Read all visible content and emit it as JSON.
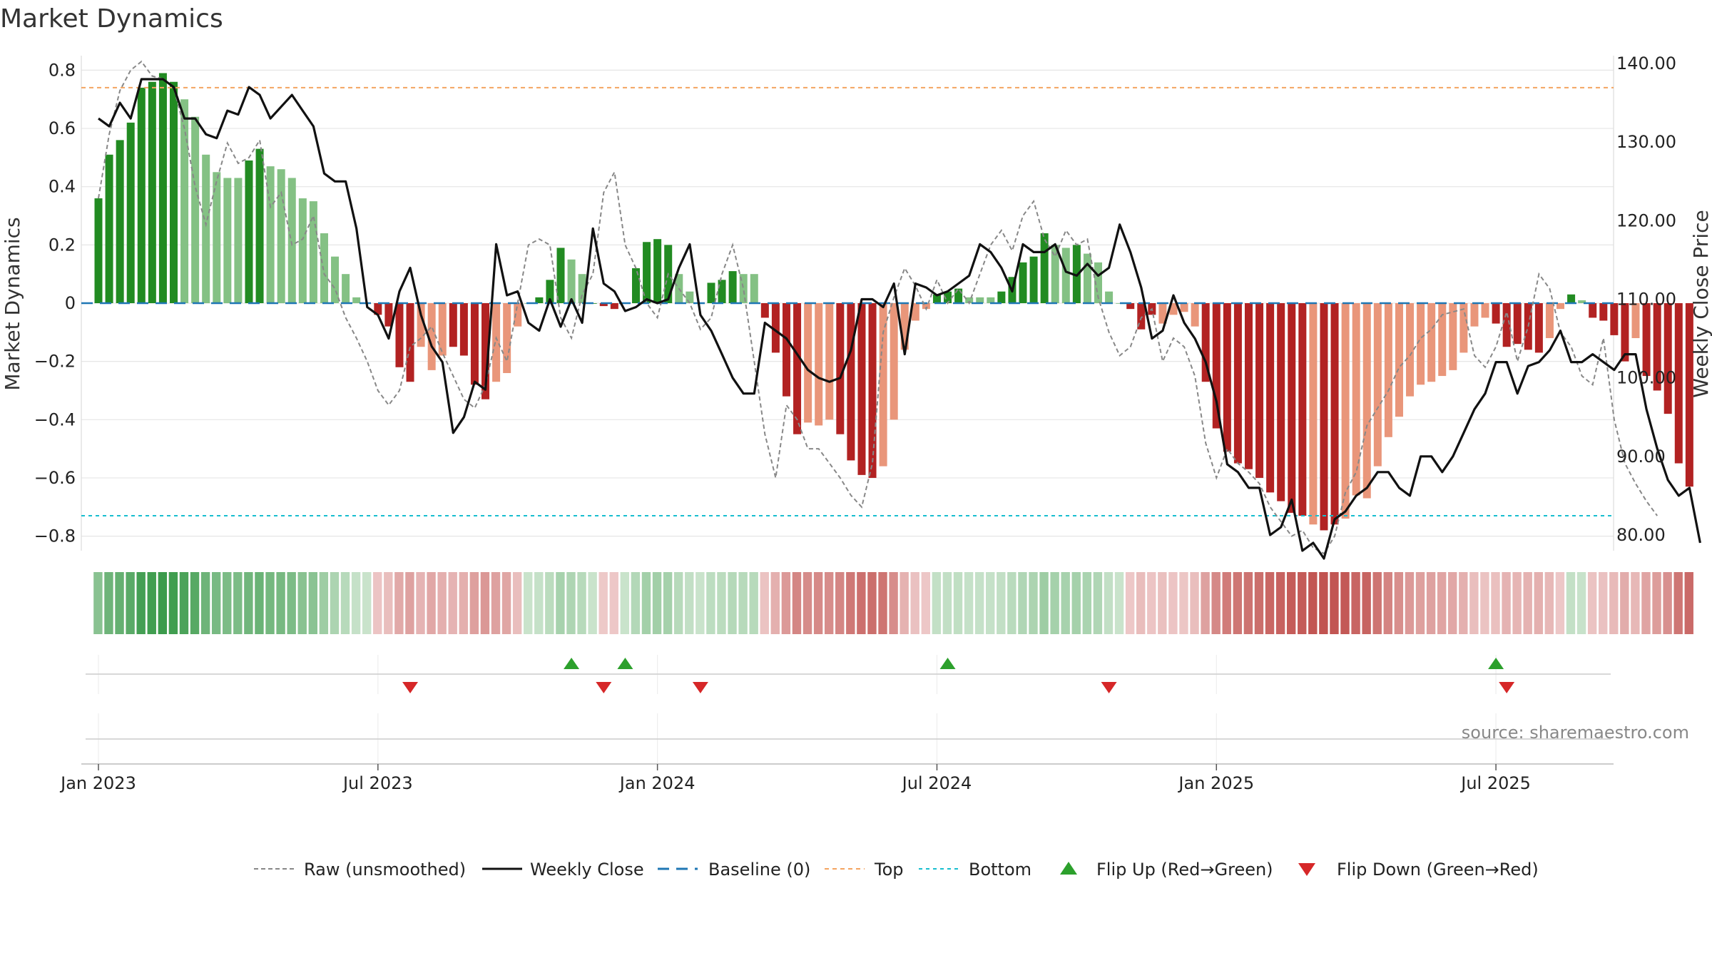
{
  "title": "Market Dynamics",
  "source": "source: sharemaestro.com",
  "chart_data": {
    "type": "bar",
    "ylabel_left": "Market Dynamics",
    "ylabel_right": "Weekly Close Price",
    "left_ylim": [
      -0.85,
      0.85
    ],
    "right_ylim": [
      78.0,
      141.0
    ],
    "left_ticks": [
      "0.8",
      "0.6",
      "0.4",
      "0.2",
      "0",
      "−0.2",
      "−0.4",
      "−0.6",
      "−0.8"
    ],
    "left_tick_values": [
      0.8,
      0.6,
      0.4,
      0.2,
      0,
      -0.2,
      -0.4,
      -0.6,
      -0.8
    ],
    "right_ticks": [
      "140.00",
      "130.00",
      "120.00",
      "110.00",
      "100.00",
      "90.00",
      "80.00"
    ],
    "right_tick_values": [
      140,
      130,
      120,
      110,
      100,
      90,
      80
    ],
    "x_ticks": [
      "Jan 2023",
      "Jul 2023",
      "Jan 2024",
      "Jul 2024",
      "Jan 2025",
      "Jul 2025"
    ],
    "x_tick_week_index": [
      0,
      26,
      52,
      78,
      104,
      130
    ],
    "x_start": "Jan 2023",
    "top_level": 0.74,
    "bottom_level": -0.73,
    "baseline": 0,
    "grid": true,
    "legend_position": "bottom-center",
    "bar_values": [
      0.36,
      0.51,
      0.56,
      0.62,
      0.74,
      0.76,
      0.79,
      0.76,
      0.7,
      0.64,
      0.51,
      0.45,
      0.43,
      0.43,
      0.49,
      0.53,
      0.47,
      0.46,
      0.43,
      0.36,
      0.35,
      0.24,
      0.16,
      0.1,
      0.02,
      0.0,
      -0.04,
      -0.08,
      -0.22,
      -0.27,
      -0.15,
      -0.23,
      -0.18,
      -0.15,
      -0.18,
      -0.28,
      -0.33,
      -0.27,
      -0.24,
      -0.08,
      0.0,
      0.02,
      0.08,
      0.19,
      0.15,
      0.1,
      0.0,
      -0.01,
      -0.02,
      0.0,
      0.12,
      0.21,
      0.22,
      0.2,
      0.1,
      0.04,
      0.0,
      0.07,
      0.08,
      0.11,
      0.1,
      0.1,
      -0.05,
      -0.17,
      -0.32,
      -0.45,
      -0.41,
      -0.42,
      -0.4,
      -0.45,
      -0.54,
      -0.59,
      -0.6,
      -0.56,
      -0.4,
      -0.16,
      -0.06,
      -0.02,
      0.03,
      0.04,
      0.05,
      0.02,
      0.02,
      0.02,
      0.04,
      0.09,
      0.14,
      0.16,
      0.24,
      0.2,
      0.19,
      0.2,
      0.17,
      0.14,
      0.04,
      0.0,
      -0.02,
      -0.09,
      -0.04,
      -0.07,
      -0.04,
      -0.03,
      -0.08,
      -0.27,
      -0.43,
      -0.51,
      -0.55,
      -0.57,
      -0.6,
      -0.65,
      -0.68,
      -0.72,
      -0.73,
      -0.76,
      -0.78,
      -0.76,
      -0.74,
      -0.66,
      -0.67,
      -0.56,
      -0.46,
      -0.39,
      -0.32,
      -0.28,
      -0.27,
      -0.25,
      -0.23,
      -0.17,
      -0.08,
      -0.05,
      -0.07,
      -0.15,
      -0.14,
      -0.16,
      -0.17,
      -0.12,
      -0.02,
      0.03,
      0.01,
      -0.05,
      -0.06,
      -0.11,
      -0.2,
      -0.12,
      -0.25,
      -0.3,
      -0.38,
      -0.55,
      -0.63
    ],
    "bar_strength": [
      1,
      1,
      1,
      1,
      1,
      1,
      1,
      1,
      0,
      0,
      0,
      0,
      0,
      0,
      1,
      1,
      0,
      0,
      0,
      0,
      0,
      0,
      0,
      0,
      0,
      0,
      1,
      1,
      1,
      1,
      0,
      0,
      0,
      1,
      1,
      1,
      1,
      0,
      0,
      0,
      0,
      1,
      1,
      1,
      0,
      0,
      1,
      1,
      1,
      1,
      1,
      1,
      1,
      1,
      0,
      0,
      0,
      1,
      1,
      1,
      0,
      0,
      1,
      1,
      1,
      1,
      0,
      0,
      0,
      1,
      1,
      1,
      1,
      0,
      0,
      0,
      0,
      0,
      1,
      1,
      1,
      0,
      0,
      0,
      1,
      1,
      1,
      1,
      1,
      0,
      0,
      1,
      0,
      0,
      0,
      0,
      1,
      1,
      1,
      0,
      0,
      0,
      0,
      1,
      1,
      1,
      1,
      1,
      1,
      1,
      1,
      1,
      1,
      0,
      1,
      1,
      0,
      0,
      0,
      0,
      0,
      0,
      0,
      0,
      0,
      0,
      0,
      0,
      0,
      0,
      1,
      1,
      1,
      1,
      1,
      0,
      0,
      1,
      0,
      1,
      1,
      1,
      1,
      0,
      1,
      1,
      1,
      1,
      1,
      1
    ],
    "raw_values": [
      0.36,
      0.58,
      0.73,
      0.8,
      0.83,
      0.78,
      0.77,
      0.74,
      0.6,
      0.4,
      0.27,
      0.42,
      0.55,
      0.48,
      0.5,
      0.56,
      0.33,
      0.38,
      0.2,
      0.22,
      0.3,
      0.1,
      0.05,
      -0.05,
      -0.12,
      -0.2,
      -0.3,
      -0.35,
      -0.3,
      -0.15,
      -0.12,
      -0.08,
      -0.17,
      -0.25,
      -0.33,
      -0.36,
      -0.28,
      -0.12,
      -0.2,
      0.0,
      0.2,
      0.22,
      0.2,
      -0.05,
      -0.12,
      0.03,
      0.1,
      0.38,
      0.45,
      0.2,
      0.12,
      0.0,
      -0.05,
      0.1,
      0.05,
      0.0,
      -0.09,
      -0.05,
      0.1,
      0.2,
      0.05,
      -0.2,
      -0.45,
      -0.6,
      -0.35,
      -0.4,
      -0.5,
      -0.5,
      -0.55,
      -0.6,
      -0.66,
      -0.7,
      -0.55,
      -0.1,
      0.02,
      0.12,
      0.06,
      -0.02,
      0.08,
      0.0,
      0.05,
      0.0,
      0.1,
      0.2,
      0.25,
      0.18,
      0.3,
      0.35,
      0.22,
      0.16,
      0.25,
      0.2,
      0.22,
      0.02,
      -0.1,
      -0.18,
      -0.15,
      -0.05,
      -0.02,
      -0.2,
      -0.12,
      -0.15,
      -0.25,
      -0.48,
      -0.6,
      -0.5,
      -0.55,
      -0.58,
      -0.62,
      -0.7,
      -0.75,
      -0.8,
      -0.78,
      -0.84,
      -0.86,
      -0.8,
      -0.65,
      -0.58,
      -0.42,
      -0.36,
      -0.3,
      -0.22,
      -0.18,
      -0.12,
      -0.09,
      -0.04,
      -0.03,
      -0.02,
      -0.18,
      -0.22,
      -0.15,
      -0.03,
      -0.2,
      -0.08,
      0.1,
      0.05,
      -0.1,
      -0.15,
      -0.25,
      -0.28,
      -0.12,
      -0.4,
      -0.55,
      -0.62,
      -0.68,
      -0.73
    ],
    "weekly_close": [
      133,
      132,
      135,
      133,
      138,
      138,
      138,
      137,
      133,
      133,
      131,
      130.5,
      134,
      133.5,
      137,
      136,
      133,
      134.5,
      136,
      134,
      132,
      126,
      125,
      125,
      119,
      109,
      108,
      105,
      111,
      114,
      108,
      104,
      102,
      93,
      95,
      99.5,
      98.5,
      117,
      110.5,
      111,
      107,
      106,
      110,
      106.5,
      110,
      107,
      119,
      112,
      111,
      108.5,
      109,
      110,
      109.5,
      110,
      114,
      117,
      108,
      106,
      103,
      100,
      98,
      98,
      107,
      106,
      105,
      103,
      101,
      100,
      99.5,
      100,
      103.5,
      110,
      110,
      109,
      112,
      103,
      112,
      111.5,
      110.5,
      111,
      112,
      113,
      117,
      116,
      114,
      111,
      117,
      116,
      116,
      117,
      113.5,
      113,
      114.5,
      113,
      114,
      119.5,
      116,
      111.5,
      105,
      106,
      110.5,
      107,
      105,
      102,
      97,
      89,
      88,
      86,
      86,
      80,
      81,
      84.5,
      78,
      79,
      77,
      82,
      83,
      85,
      86,
      88,
      88,
      86,
      85,
      90,
      90,
      88,
      90,
      93,
      96,
      98,
      102,
      102,
      98,
      101.5,
      102,
      103.5,
      106,
      102,
      102,
      103,
      102,
      101,
      103,
      103,
      96,
      91,
      87,
      85,
      86,
      79
    ],
    "flip_up_weeks": [
      44,
      49,
      79,
      130
    ],
    "flip_down_weeks": [
      29,
      47,
      56,
      94,
      131
    ],
    "legend": [
      {
        "key": "raw",
        "label": "Raw (unsmoothed)"
      },
      {
        "key": "close",
        "label": "Weekly Close"
      },
      {
        "key": "baseline",
        "label": "Baseline (0)"
      },
      {
        "key": "top",
        "label": "Top"
      },
      {
        "key": "bottom",
        "label": "Bottom"
      },
      {
        "key": "flip_up",
        "label": "Flip Up (Red→Green)"
      },
      {
        "key": "flip_down",
        "label": "Flip Down (Green→Red)"
      }
    ],
    "colors": {
      "pos_strong": "#228B22",
      "pos_weak": "#84C184",
      "neg_strong": "#B22222",
      "neg_weak": "#E9967A",
      "close": "#111111",
      "raw": "#888888",
      "baseline": "#1f77b4",
      "top": "#F4A460",
      "bottom": "#17BECF",
      "flip_up": "#2CA02C",
      "flip_down": "#D62728"
    }
  }
}
